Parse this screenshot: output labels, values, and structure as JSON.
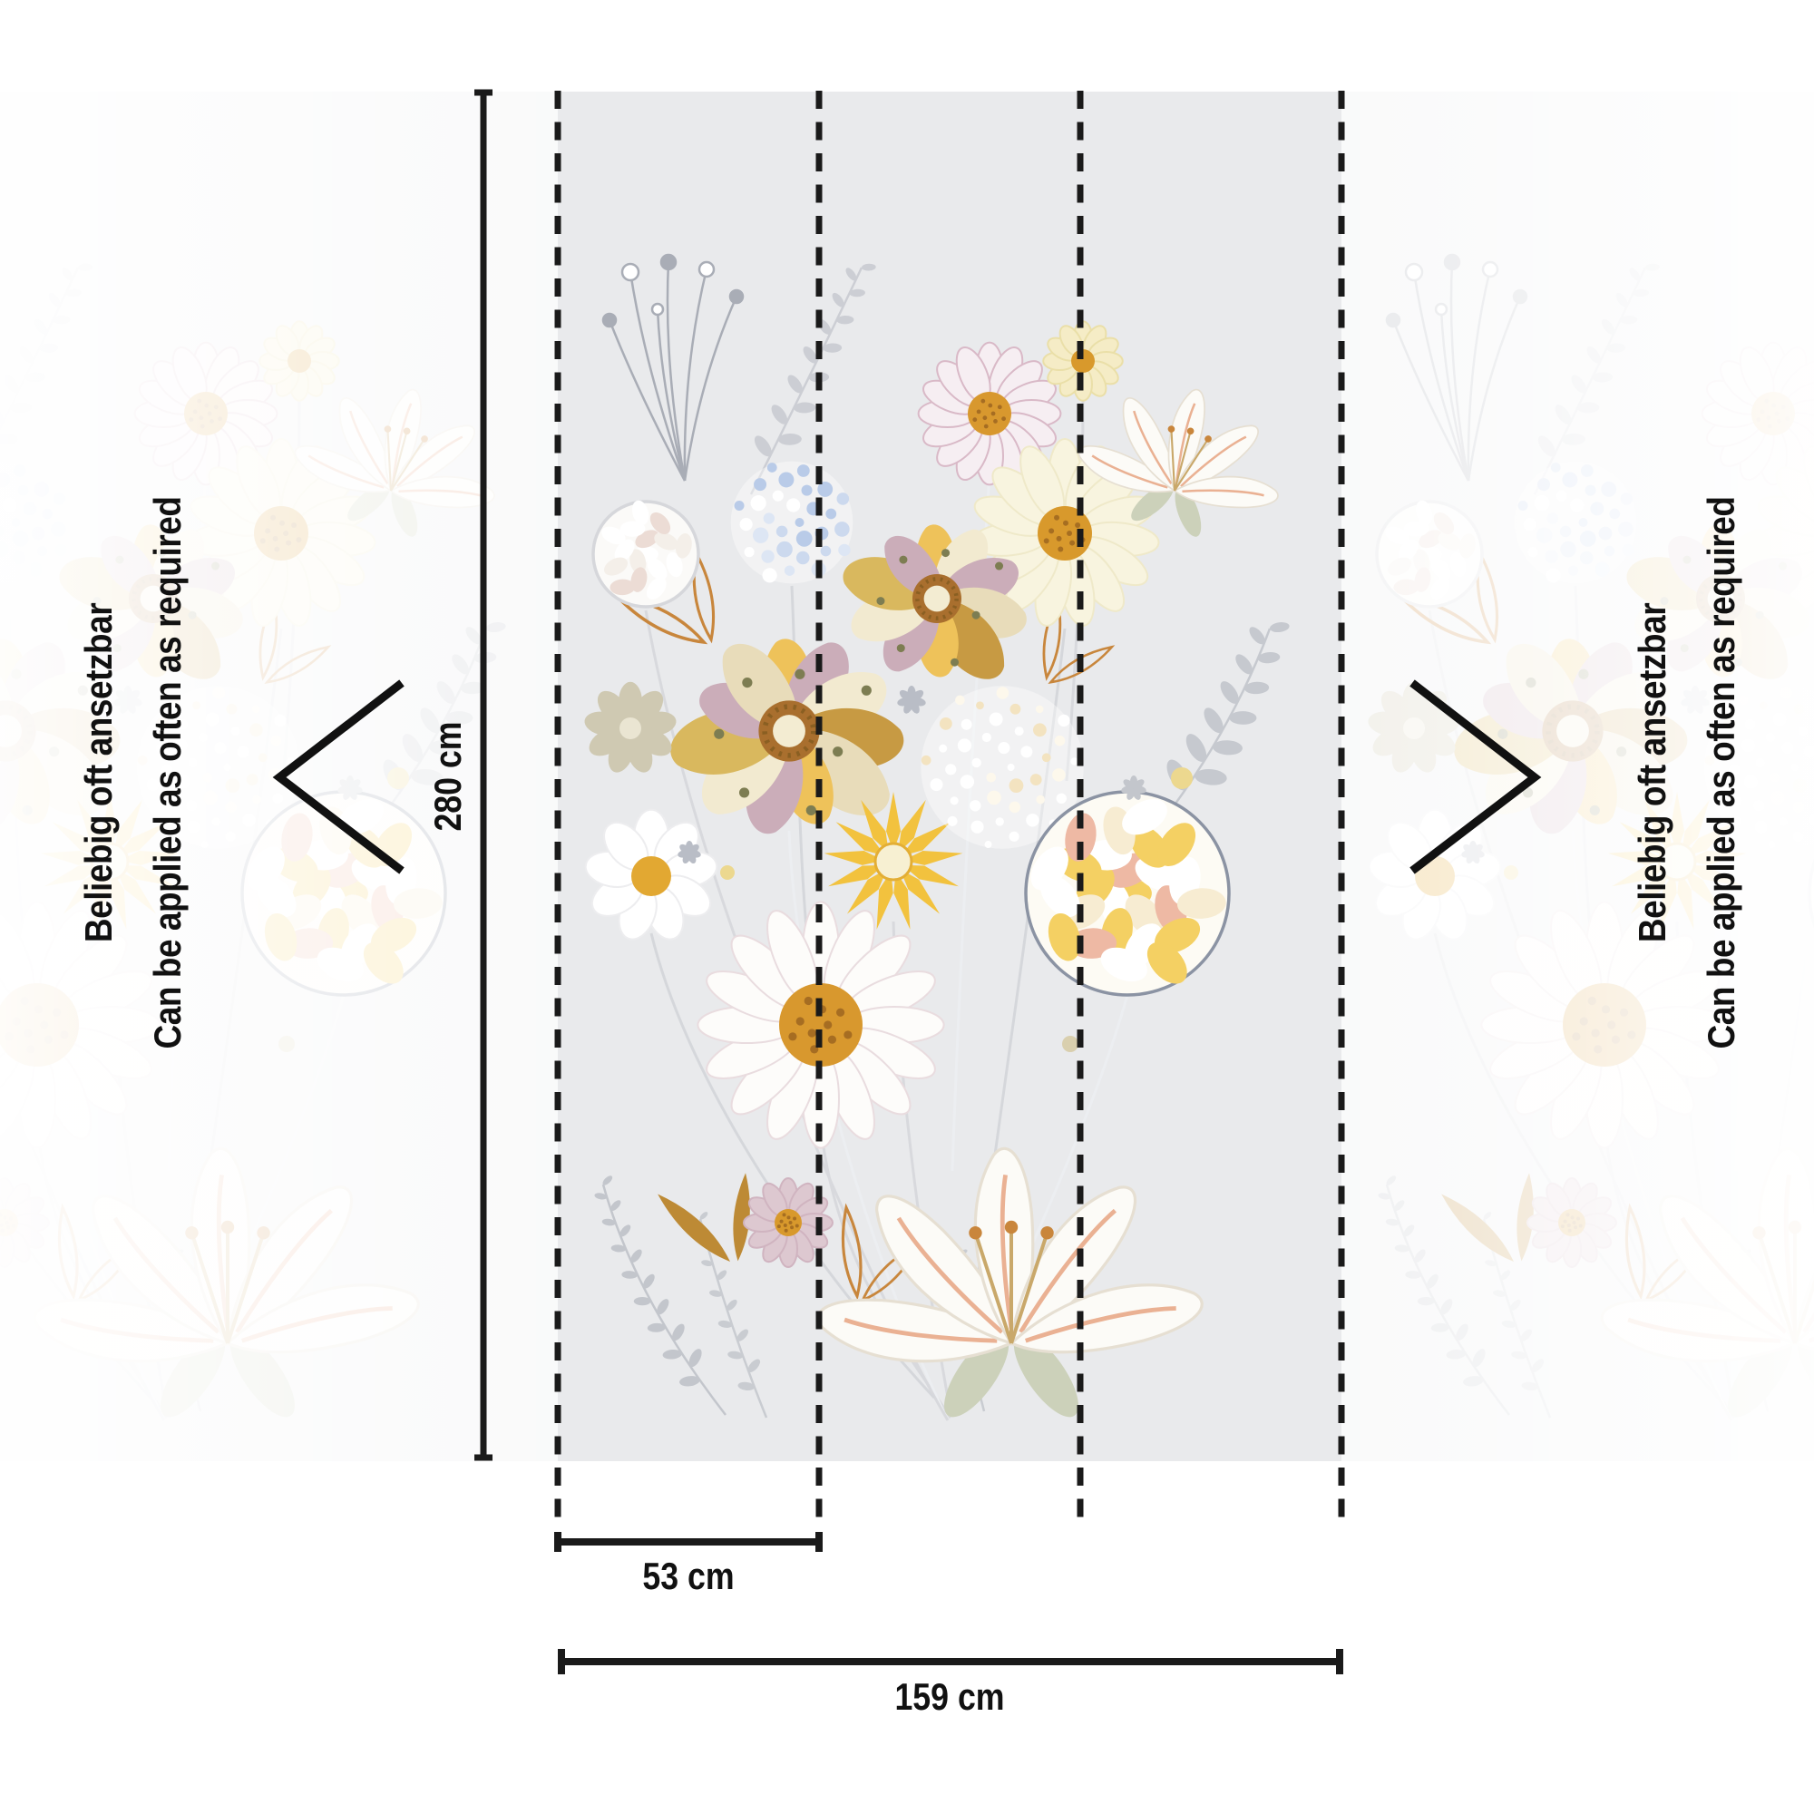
{
  "diagram": {
    "type": "wallpaper-dimension-diagram",
    "height_label": "280 cm",
    "strip_width_label": "53 cm",
    "total_width_label": "159 cm",
    "height_cm": 280,
    "strip_width_cm": 53,
    "total_width_cm": 159,
    "visible_strips": 3,
    "seam_lines": 4,
    "notes": {
      "de": "Beliebig oft ansetzbar",
      "en": "Can be applied as often as required"
    },
    "icons": {
      "left": "repeat-chevron-left-icon",
      "right": "repeat-chevron-right-icon"
    },
    "colors": {
      "page_bg": "#ffffff",
      "panel_bg": "#e9eaec",
      "annotation": "#1a1a1a",
      "floral_yellow": "#eec25a",
      "floral_gold_center": "#d8982e",
      "floral_mauve": "#cbadb9",
      "floral_cream": "#f2ead0",
      "floral_blue": "#b9cbe8",
      "foliage_gray": "#c6c9cf",
      "outline_orange": "#c8863c"
    }
  }
}
